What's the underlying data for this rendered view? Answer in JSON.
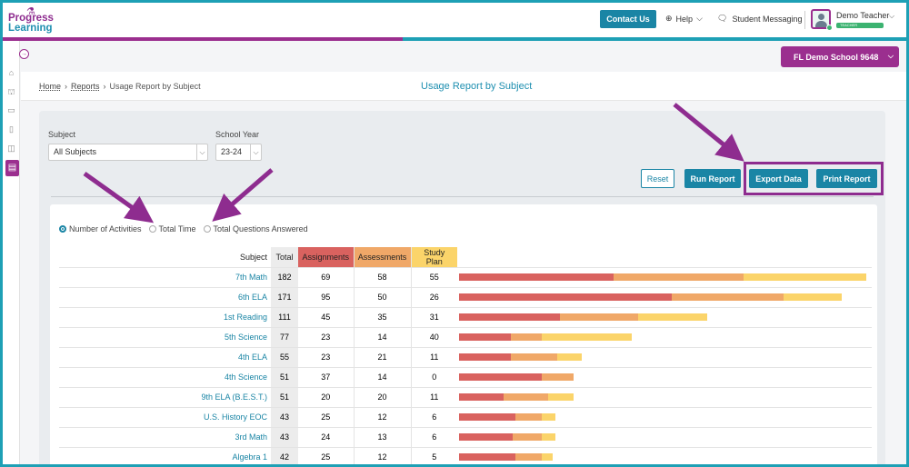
{
  "header": {
    "logo": {
      "line1": "Progress",
      "line2": "Learning"
    },
    "contact_label": "Contact Us",
    "help_label": "Help",
    "messaging_label": "Student Messaging",
    "user_name": "Demo Teacher",
    "user_role": "TEACHER"
  },
  "school_selector": {
    "label": "FL Demo School 9648"
  },
  "breadcrumb": {
    "home": "Home",
    "reports": "Reports",
    "current": "Usage Report by Subject"
  },
  "page_title": "Usage Report by Subject",
  "filters": {
    "subject_label": "Subject",
    "subject_value": "All Subjects",
    "year_label": "School Year",
    "year_value": "23-24"
  },
  "actions": {
    "reset": "Reset",
    "run": "Run Report",
    "export": "Export Data",
    "print": "Print Report"
  },
  "radios": [
    {
      "label": "Number of Activities",
      "selected": true
    },
    {
      "label": "Total Time",
      "selected": false
    },
    {
      "label": "Total Questions Answered",
      "selected": false
    }
  ],
  "table": {
    "headers": {
      "subject": "Subject",
      "total": "Total",
      "assignments": "Assignments",
      "assessments": "Assessments",
      "study_plan": "Study Plan"
    },
    "rows": [
      {
        "subject": "7th Math",
        "total": "182",
        "assignments": "69",
        "assessments": "58",
        "study_plan": "55"
      },
      {
        "subject": "6th ELA",
        "total": "171",
        "assignments": "95",
        "assessments": "50",
        "study_plan": "26"
      },
      {
        "subject": "1st Reading",
        "total": "111",
        "assignments": "45",
        "assessments": "35",
        "study_plan": "31"
      },
      {
        "subject": "5th Science",
        "total": "77",
        "assignments": "23",
        "assessments": "14",
        "study_plan": "40"
      },
      {
        "subject": "4th ELA",
        "total": "55",
        "assignments": "23",
        "assessments": "21",
        "study_plan": "11"
      },
      {
        "subject": "4th Science",
        "total": "51",
        "assignments": "37",
        "assessments": "14",
        "study_plan": "0"
      },
      {
        "subject": "9th ELA (B.E.S.T.)",
        "total": "51",
        "assignments": "20",
        "assessments": "20",
        "study_plan": "11"
      },
      {
        "subject": "U.S. History EOC",
        "total": "43",
        "assignments": "25",
        "assessments": "12",
        "study_plan": "6"
      },
      {
        "subject": "3rd Math",
        "total": "43",
        "assignments": "24",
        "assessments": "13",
        "study_plan": "6"
      },
      {
        "subject": "Algebra 1",
        "total": "42",
        "assignments": "25",
        "assessments": "12",
        "study_plan": "5"
      }
    ]
  },
  "colors": {
    "assignments": "#d9625f",
    "assessments": "#f0a868",
    "study_plan": "#fbd46a",
    "brand_purple": "#9b2f8f",
    "brand_teal": "#1a85a5"
  }
}
